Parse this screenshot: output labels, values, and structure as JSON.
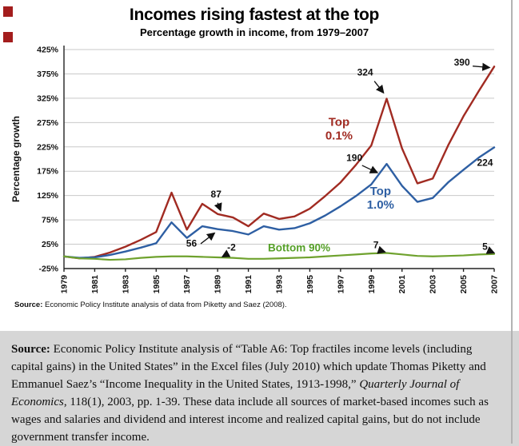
{
  "chart_data": {
    "type": "line",
    "title": "Incomes rising fastest at the top",
    "subtitle": "Percentage growth in income, from 1979–2007",
    "ylabel": "Percentage growth",
    "xlim": [
      1979,
      2007
    ],
    "ylim": [
      -25,
      425
    ],
    "yticks": [
      -25,
      25,
      75,
      125,
      175,
      225,
      275,
      325,
      375,
      425
    ],
    "xticks": [
      1979,
      1981,
      1983,
      1985,
      1987,
      1989,
      1991,
      1993,
      1995,
      1997,
      1999,
      2001,
      2003,
      2005,
      2007
    ],
    "grid": "horizontal",
    "x": [
      1979,
      1980,
      1981,
      1982,
      1983,
      1984,
      1985,
      1986,
      1987,
      1988,
      1989,
      1990,
      1991,
      1992,
      1993,
      1994,
      1995,
      1996,
      1997,
      1998,
      1999,
      2000,
      2001,
      2002,
      2003,
      2004,
      2005,
      2006,
      2007
    ],
    "series": [
      {
        "id": "top-0-1",
        "name": "Top 0.1%",
        "color": "#a12b22",
        "width": 2.4,
        "values": [
          0,
          -4,
          -1,
          8,
          20,
          34,
          50,
          131,
          55,
          108,
          87,
          80,
          62,
          88,
          77,
          82,
          98,
          124,
          152,
          188,
          228,
          324,
          222,
          150,
          160,
          228,
          288,
          340,
          390
        ]
      },
      {
        "id": "top-1-0",
        "name": "Top 1.0%",
        "color": "#2e5fa3",
        "width": 2.4,
        "values": [
          0,
          -3,
          -2,
          3,
          10,
          18,
          27,
          70,
          38,
          62,
          56,
          52,
          45,
          62,
          55,
          58,
          68,
          84,
          103,
          124,
          148,
          190,
          145,
          112,
          120,
          152,
          178,
          203,
          224
        ]
      },
      {
        "id": "bottom-90",
        "name": "Bottom 90%",
        "color": "#6fa22e",
        "width": 2.2,
        "values": [
          0,
          -4,
          -5,
          -7,
          -6,
          -3,
          -1,
          0,
          0,
          -1,
          -2,
          -3,
          -5,
          -5,
          -4,
          -3,
          -2,
          0,
          2,
          4,
          6,
          7,
          4,
          1,
          0,
          1,
          2,
          4,
          5
        ]
      }
    ],
    "series_labels": [
      {
        "lines": [
          "Top",
          "0.1%"
        ],
        "x": 1996.9,
        "y": 268,
        "color": "#a12b22",
        "size": 15
      },
      {
        "lines": [
          "Top",
          "1.0%"
        ],
        "x": 1999.6,
        "y": 126,
        "color": "#2e5fa3",
        "size": 15
      },
      {
        "lines": [
          "Bottom 90%"
        ],
        "x": 1994.3,
        "y": 10,
        "color": "#55a028",
        "size": 13.5
      }
    ],
    "annotations": [
      {
        "text": "87",
        "x": 1988.9,
        "y": 121,
        "arrow": {
          "x1": 1989.0,
          "y1": 110,
          "x2": 1989.2,
          "y2": 94
        }
      },
      {
        "text": "56",
        "x": 1987.3,
        "y": 20,
        "arrow": {
          "x1": 1987.9,
          "y1": 26,
          "x2": 1988.8,
          "y2": 48
        }
      },
      {
        "text": "-2",
        "x": 1989.9,
        "y": 12,
        "arrow": {
          "x1": 1989.7,
          "y1": 6,
          "x2": 1989.3,
          "y2": -1
        }
      },
      {
        "text": "190",
        "x": 1997.9,
        "y": 196,
        "arrow": {
          "x1": 1998.4,
          "y1": 187,
          "x2": 1999.4,
          "y2": 172
        }
      },
      {
        "text": "324",
        "x": 1998.6,
        "y": 372,
        "arrow": {
          "x1": 1999.2,
          "y1": 360,
          "x2": 1999.8,
          "y2": 336
        }
      },
      {
        "text": "390",
        "x": 2004.9,
        "y": 392,
        "arrow": {
          "x1": 2005.6,
          "y1": 391,
          "x2": 2006.7,
          "y2": 388
        }
      },
      {
        "text": "224",
        "x": 2006.4,
        "y": 186
      },
      {
        "text": "7",
        "x": 1999.3,
        "y": 17,
        "arrow": {
          "x1": 1999.5,
          "y1": 13,
          "x2": 1999.9,
          "y2": 9
        }
      },
      {
        "text": "5",
        "x": 2006.4,
        "y": 14,
        "arrow": {
          "x1": 2006.7,
          "y1": 11,
          "x2": 2007.0,
          "y2": 7
        }
      }
    ]
  },
  "source_note": {
    "label": "Source:",
    "text": " Economic Policy Institute analysis of data from Piketty and Saez (2008)."
  },
  "caption": {
    "segments": [
      {
        "style": "bold",
        "text": "Source: "
      },
      {
        "style": "normal",
        "text": "Economic Policy Institute analysis of “Table A6: Top fractiles income levels (including capital gains) in the United States” in the Excel files (July 2010) which update Thomas Piketty and Emmanuel Saez’s “Income Inequality in the United States, 1913-1998,” "
      },
      {
        "style": "italic",
        "text": "Quarterly Journal of Economics"
      },
      {
        "style": "normal",
        "text": ", 118(1), 2003, pp. 1-39. These data include all sources of market-based incomes such as wages and salaries and dividend and interest income and realized capital gains, but do not include government transfer income."
      }
    ]
  }
}
